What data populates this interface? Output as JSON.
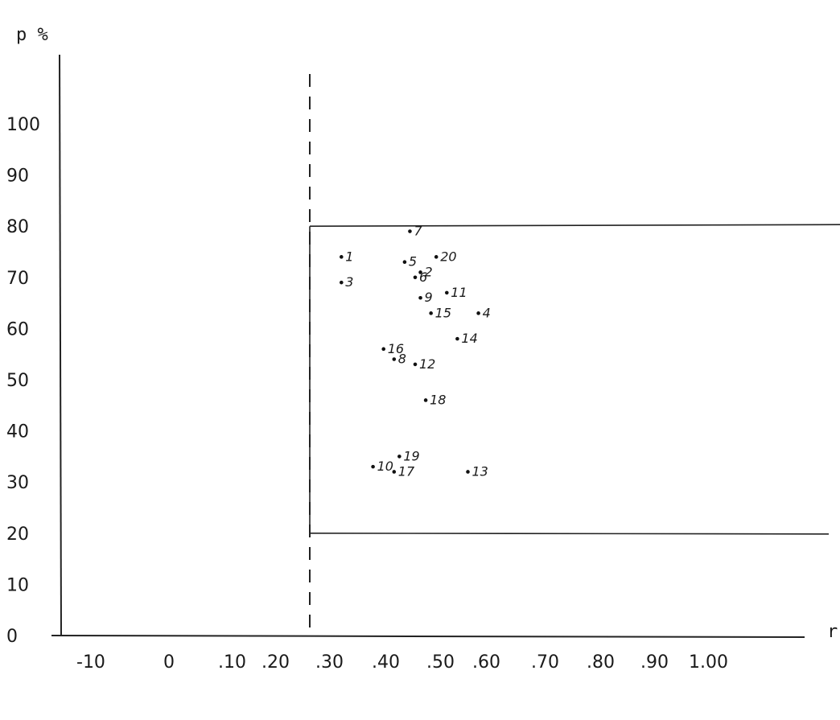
{
  "chart_data": {
    "type": "scatter",
    "title": "",
    "xlabel": "r",
    "ylabel": "p %",
    "x_tick_labels": [
      "-10",
      "0",
      ".10",
      ".20",
      ".30",
      ".40",
      ".50",
      ".60",
      ".70",
      ".80",
      ".90",
      "1.00"
    ],
    "y_tick_labels": [
      "0",
      "10",
      "20",
      "30",
      "40",
      "50",
      "60",
      "70",
      "80",
      "90",
      "100"
    ],
    "ylim": [
      0,
      100
    ],
    "region": {
      "x_min": 0.2,
      "x_max": 1.0,
      "y_min": 20,
      "y_max": 80
    },
    "reference_line_x": 0.2,
    "grid": false,
    "points": [
      {
        "label": "1",
        "r": 0.26,
        "p": 74
      },
      {
        "label": "2",
        "r": 0.41,
        "p": 71
      },
      {
        "label": "3",
        "r": 0.26,
        "p": 69
      },
      {
        "label": "4",
        "r": 0.52,
        "p": 63
      },
      {
        "label": "5",
        "r": 0.38,
        "p": 73
      },
      {
        "label": "6",
        "r": 0.4,
        "p": 70
      },
      {
        "label": "7",
        "r": 0.39,
        "p": 79
      },
      {
        "label": "8",
        "r": 0.36,
        "p": 54
      },
      {
        "label": "9",
        "r": 0.41,
        "p": 66
      },
      {
        "label": "10",
        "r": 0.32,
        "p": 33
      },
      {
        "label": "11",
        "r": 0.46,
        "p": 67
      },
      {
        "label": "12",
        "r": 0.4,
        "p": 53
      },
      {
        "label": "13",
        "r": 0.5,
        "p": 32
      },
      {
        "label": "14",
        "r": 0.48,
        "p": 58
      },
      {
        "label": "15",
        "r": 0.43,
        "p": 63
      },
      {
        "label": "16",
        "r": 0.34,
        "p": 56
      },
      {
        "label": "17",
        "r": 0.36,
        "p": 32
      },
      {
        "label": "18",
        "r": 0.42,
        "p": 46
      },
      {
        "label": "19",
        "r": 0.37,
        "p": 35
      },
      {
        "label": "20",
        "r": 0.44,
        "p": 74
      }
    ]
  }
}
